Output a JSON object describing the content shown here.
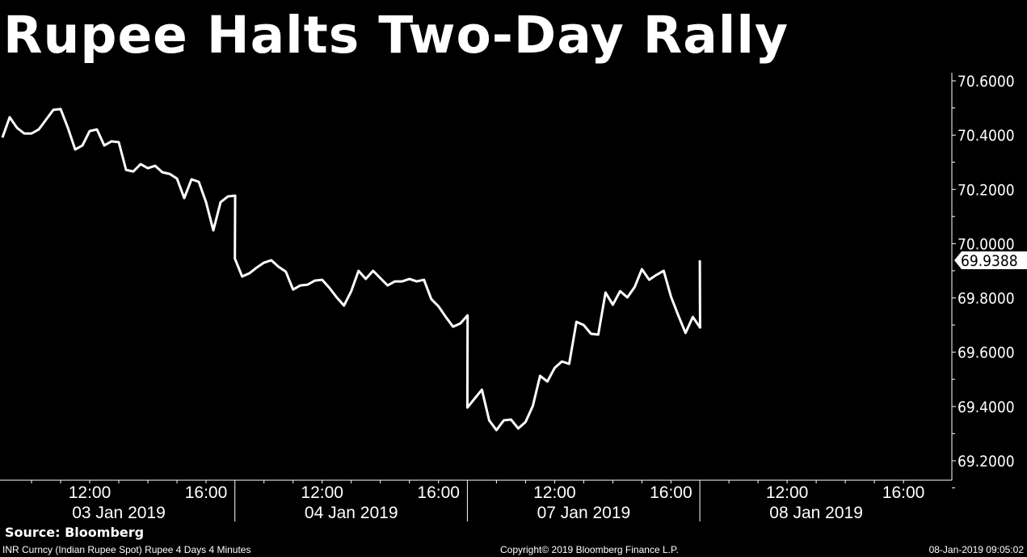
{
  "chart_data": {
    "type": "line",
    "title": "Rupee Halts Two-Day Rally",
    "ylim": [
      69.15,
      70.63
    ],
    "yticks": [
      "70.6000",
      "70.4000",
      "70.2000",
      "70.0000",
      "69.8000",
      "69.6000",
      "69.4000",
      "69.2000"
    ],
    "ytick_values": [
      70.6,
      70.4,
      70.2,
      70.0,
      69.8,
      69.6,
      69.4,
      69.2
    ],
    "last_value_label": "69.9388",
    "grid": false,
    "line_color": "#ffffff",
    "background": "#000000",
    "session_hours": [
      "09:00",
      "17:00"
    ],
    "days": [
      {
        "date": "03 Jan 2019",
        "time_labels": [
          "12:00",
          "16:00"
        ],
        "values": [
          70.391,
          70.466,
          70.427,
          70.406,
          70.406,
          70.421,
          70.457,
          70.493,
          70.496,
          70.427,
          70.347,
          70.362,
          70.415,
          70.421,
          70.362,
          70.377,
          70.374,
          70.272,
          70.266,
          70.293,
          70.278,
          70.287,
          70.263,
          70.257,
          70.24,
          70.168,
          70.237,
          70.228,
          70.153,
          70.049,
          70.153,
          70.174,
          70.177
        ]
      },
      {
        "date": "04 Jan 2019",
        "time_labels": [
          "12:00",
          "16:00"
        ],
        "values": [
          69.945,
          69.879,
          69.891,
          69.912,
          69.93,
          69.939,
          69.915,
          69.897,
          69.831,
          69.846,
          69.849,
          69.864,
          69.867,
          69.837,
          69.802,
          69.772,
          69.825,
          69.9,
          69.87,
          69.9,
          69.873,
          69.846,
          69.861,
          69.861,
          69.87,
          69.861,
          69.867,
          69.796,
          69.769,
          69.73,
          69.694,
          69.706,
          69.736
        ]
      },
      {
        "date": "07 Jan 2019",
        "time_labels": [
          "12:00",
          "16:00"
        ],
        "values": [
          69.396,
          69.429,
          69.462,
          69.349,
          69.313,
          69.349,
          69.352,
          69.319,
          69.343,
          69.402,
          69.513,
          69.492,
          69.542,
          69.566,
          69.557,
          69.712,
          69.7,
          69.668,
          69.665,
          69.82,
          69.775,
          69.825,
          69.802,
          69.84,
          69.906,
          69.867,
          69.885,
          69.9,
          69.805,
          69.736,
          69.671,
          69.73,
          69.691
        ]
      },
      {
        "date": "08 Jan 2019",
        "time_labels": [
          "12:00",
          "16:00"
        ],
        "values": [
          69.9388
        ]
      }
    ],
    "sample_interval_minutes": 15
  },
  "footer": {
    "source": "Source: Bloomberg",
    "description": "INR Curncy (Indian Rupee Spot) Rupee 4 Days 4 Minutes",
    "copyright": "Copyright© 2019 Bloomberg Finance L.P.",
    "timestamp": "08-Jan-2019 09:05:02"
  }
}
